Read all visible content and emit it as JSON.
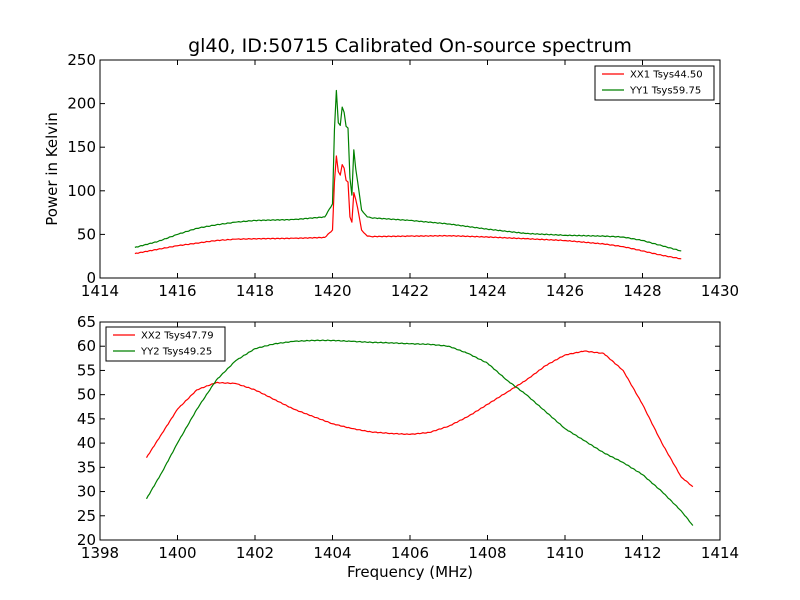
{
  "chart_data": [
    {
      "type": "line",
      "title": "gl40, ID:50715 Calibrated On-source spectrum",
      "xlabel": "",
      "ylabel": "Power in Kelvin",
      "xlim": [
        1414,
        1430
      ],
      "ylim": [
        0,
        250
      ],
      "xticks": [
        1414,
        1416,
        1418,
        1420,
        1422,
        1424,
        1426,
        1428,
        1430
      ],
      "yticks": [
        0,
        50,
        100,
        150,
        200,
        250
      ],
      "legend_position": "top-right",
      "grid": false,
      "series": [
        {
          "name": "XX1 Tsys44.50",
          "color": "#ff0000",
          "points": [
            [
              1414.9,
              28
            ],
            [
              1415.5,
              33
            ],
            [
              1416,
              37
            ],
            [
              1416.5,
              40
            ],
            [
              1417,
              43
            ],
            [
              1417.5,
              44.5
            ],
            [
              1418,
              45
            ],
            [
              1419,
              45.5
            ],
            [
              1419.8,
              46.5
            ],
            [
              1420.0,
              55
            ],
            [
              1420.05,
              110
            ],
            [
              1420.1,
              140
            ],
            [
              1420.15,
              122
            ],
            [
              1420.2,
              118
            ],
            [
              1420.25,
              130
            ],
            [
              1420.3,
              126
            ],
            [
              1420.35,
              112
            ],
            [
              1420.4,
              110
            ],
            [
              1420.45,
              70
            ],
            [
              1420.5,
              64
            ],
            [
              1420.55,
              98
            ],
            [
              1420.6,
              90
            ],
            [
              1420.65,
              80
            ],
            [
              1420.75,
              55
            ],
            [
              1420.9,
              48
            ],
            [
              1421,
              47.5
            ],
            [
              1422,
              48
            ],
            [
              1423,
              48.5
            ],
            [
              1424,
              47
            ],
            [
              1425,
              45
            ],
            [
              1426,
              43
            ],
            [
              1427,
              39
            ],
            [
              1427.5,
              36
            ],
            [
              1428,
              31
            ],
            [
              1428.5,
              26
            ],
            [
              1429,
              22
            ]
          ]
        },
        {
          "name": "YY1 Tsys59.75",
          "color": "#008000",
          "points": [
            [
              1414.9,
              35
            ],
            [
              1415.5,
              42
            ],
            [
              1416,
              50
            ],
            [
              1416.5,
              57
            ],
            [
              1417,
              61
            ],
            [
              1417.5,
              64
            ],
            [
              1418,
              66
            ],
            [
              1419,
              67
            ],
            [
              1419.8,
              70
            ],
            [
              1420.0,
              85
            ],
            [
              1420.05,
              170
            ],
            [
              1420.1,
              215
            ],
            [
              1420.15,
              178
            ],
            [
              1420.2,
              175
            ],
            [
              1420.25,
              196
            ],
            [
              1420.3,
              190
            ],
            [
              1420.35,
              174
            ],
            [
              1420.4,
              172
            ],
            [
              1420.45,
              115
            ],
            [
              1420.5,
              95
            ],
            [
              1420.55,
              147
            ],
            [
              1420.6,
              125
            ],
            [
              1420.65,
              110
            ],
            [
              1420.75,
              78
            ],
            [
              1420.9,
              70
            ],
            [
              1421,
              69
            ],
            [
              1422,
              66
            ],
            [
              1423,
              62
            ],
            [
              1424,
              56
            ],
            [
              1425,
              51
            ],
            [
              1426,
              49
            ],
            [
              1427,
              48
            ],
            [
              1427.5,
              47
            ],
            [
              1428,
              43
            ],
            [
              1428.5,
              37
            ],
            [
              1429,
              31
            ]
          ]
        }
      ]
    },
    {
      "type": "line",
      "title": "",
      "xlabel": "Frequency (MHz)",
      "ylabel": "",
      "xlim": [
        1398,
        1414
      ],
      "ylim": [
        20,
        65
      ],
      "xticks": [
        1398,
        1400,
        1402,
        1404,
        1406,
        1408,
        1410,
        1412,
        1414
      ],
      "yticks": [
        20,
        25,
        30,
        35,
        40,
        45,
        50,
        55,
        60,
        65
      ],
      "legend_position": "top-left",
      "grid": false,
      "series": [
        {
          "name": "XX2 Tsys47.79",
          "color": "#ff0000",
          "points": [
            [
              1399.2,
              37
            ],
            [
              1399.6,
              42
            ],
            [
              1400,
              47
            ],
            [
              1400.5,
              51
            ],
            [
              1401,
              52.5
            ],
            [
              1401.5,
              52.3
            ],
            [
              1402,
              51
            ],
            [
              1402.5,
              49
            ],
            [
              1403,
              47
            ],
            [
              1403.5,
              45.5
            ],
            [
              1404,
              44
            ],
            [
              1404.5,
              43
            ],
            [
              1405,
              42.3
            ],
            [
              1405.5,
              42
            ],
            [
              1406,
              41.8
            ],
            [
              1406.5,
              42.2
            ],
            [
              1407,
              43.5
            ],
            [
              1407.5,
              45.5
            ],
            [
              1408,
              48
            ],
            [
              1408.5,
              50.5
            ],
            [
              1409,
              53
            ],
            [
              1409.5,
              56
            ],
            [
              1410,
              58.2
            ],
            [
              1410.5,
              59
            ],
            [
              1411,
              58.5
            ],
            [
              1411.5,
              55
            ],
            [
              1412,
              48
            ],
            [
              1412.5,
              40
            ],
            [
              1413,
              33
            ],
            [
              1413.3,
              31
            ]
          ]
        },
        {
          "name": "YY2 Tsys49.25",
          "color": "#008000",
          "points": [
            [
              1399.2,
              28.5
            ],
            [
              1399.6,
              34
            ],
            [
              1400,
              40
            ],
            [
              1400.5,
              47
            ],
            [
              1401,
              53
            ],
            [
              1401.5,
              57
            ],
            [
              1402,
              59.5
            ],
            [
              1402.5,
              60.5
            ],
            [
              1403,
              61
            ],
            [
              1403.5,
              61.2
            ],
            [
              1404,
              61.2
            ],
            [
              1404.5,
              61
            ],
            [
              1405,
              60.8
            ],
            [
              1405.5,
              60.7
            ],
            [
              1406,
              60.5
            ],
            [
              1406.5,
              60.4
            ],
            [
              1407,
              60
            ],
            [
              1407.5,
              58.5
            ],
            [
              1408,
              56.5
            ],
            [
              1408.5,
              53
            ],
            [
              1409,
              50
            ],
            [
              1409.5,
              46.5
            ],
            [
              1410,
              43
            ],
            [
              1410.5,
              40.5
            ],
            [
              1411,
              38
            ],
            [
              1411.5,
              36
            ],
            [
              1412,
              33.5
            ],
            [
              1412.5,
              30
            ],
            [
              1413,
              26
            ],
            [
              1413.3,
              23
            ]
          ]
        }
      ]
    }
  ]
}
